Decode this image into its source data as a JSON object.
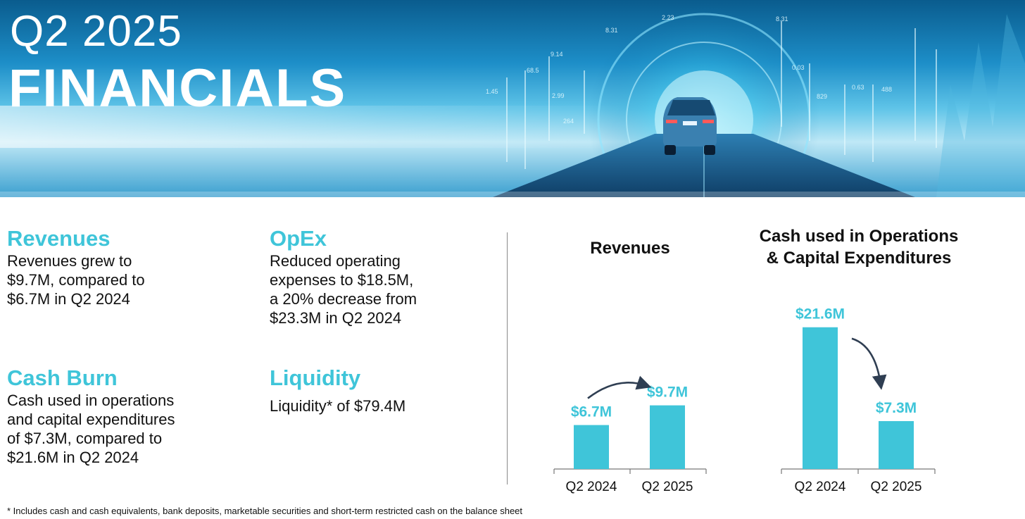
{
  "header": {
    "title_line1": "Q2 2025",
    "title_line2": "FINANCIALS"
  },
  "summary": {
    "revenues": {
      "heading": "Revenues",
      "lines": [
        "Revenues grew to",
        "$9.7M, compared to",
        "$6.7M in Q2 2024"
      ]
    },
    "opex": {
      "heading": "OpEx",
      "lines": [
        "Reduced operating",
        "expenses to $18.5M,",
        "a 20% decrease from",
        "$23.3M in Q2 2024"
      ]
    },
    "cash_burn": {
      "heading": "Cash Burn",
      "lines": [
        "Cash used in operations",
        "and capital expenditures",
        "of $7.3M, compared to",
        "$21.6M in Q2 2024"
      ]
    },
    "liquidity": {
      "heading": "Liquidity",
      "lines": [
        "Liquidity* of $79.4M"
      ]
    }
  },
  "footnote": "*  Includes cash and cash equivalents, bank deposits, marketable securities and short-term restricted cash on the balance sheet",
  "colors": {
    "bar": "#3fc5d9",
    "label": "#3fc5d9",
    "arrow": "#2f3e52"
  },
  "chart_data": [
    {
      "type": "bar",
      "title": "Revenues",
      "categories": [
        "Q2 2024",
        "Q2 2025"
      ],
      "values": [
        6.7,
        9.7
      ],
      "data_labels": [
        "$6.7M",
        "$9.7M"
      ],
      "unit": "$M",
      "ylim": [
        0,
        22
      ],
      "xlabel": "",
      "ylabel": "",
      "grid": false
    },
    {
      "type": "bar",
      "title": "Cash used in Operations & Capital Expenditures",
      "title_lines": [
        "Cash used in Operations",
        "& Capital Expenditures"
      ],
      "categories": [
        "Q2 2024",
        "Q2 2025"
      ],
      "values": [
        21.6,
        7.3
      ],
      "data_labels": [
        "$21.6M",
        "$7.3M"
      ],
      "unit": "$M",
      "ylim": [
        0,
        22
      ],
      "xlabel": "",
      "ylabel": "",
      "grid": false
    }
  ]
}
